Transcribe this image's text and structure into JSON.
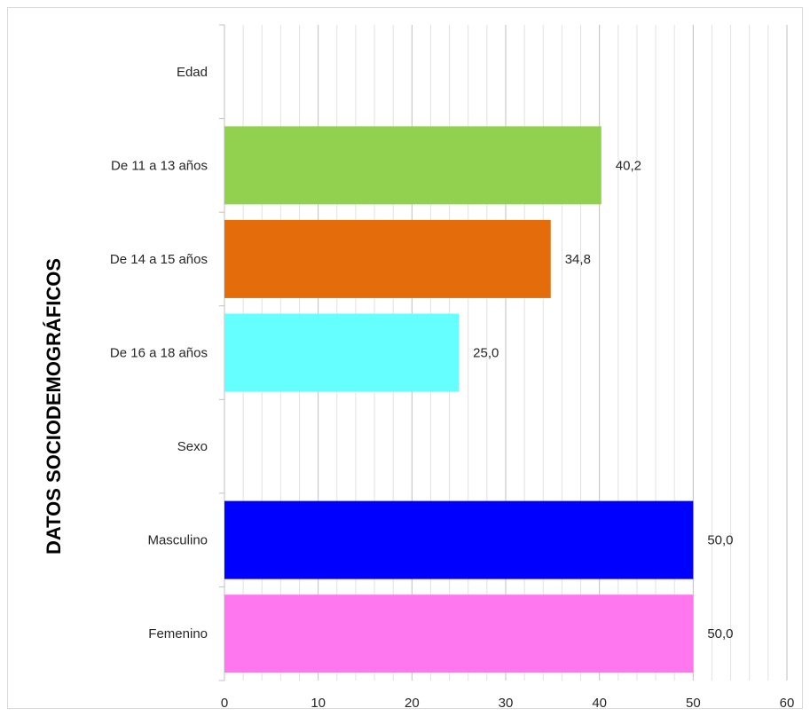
{
  "chart_data": {
    "type": "bar",
    "orientation": "horizontal",
    "title": "",
    "xlabel": "",
    "ylabel": "DATOS  SOCIODEMOGRÁFICOS",
    "xlim": [
      0,
      60
    ],
    "major_ticks": [
      0,
      10,
      20,
      30,
      40,
      50,
      60
    ],
    "minor_step": 2,
    "grid": true,
    "legend": "none",
    "categories": [
      "Edad",
      "De 11 a 13 años",
      "De 14 a 15 años",
      "De 16 a 18 años",
      "Sexo",
      "Masculino",
      "Femenino"
    ],
    "values": [
      null,
      40.2,
      34.8,
      25.0,
      null,
      50.0,
      50.0
    ],
    "value_labels": [
      "",
      "40,2",
      "34,8",
      "25,0",
      "",
      "50,0",
      "50,0"
    ],
    "colors": [
      "",
      "#92d050",
      "#e46c0a",
      "#66ffff",
      "",
      "#0000ff",
      "#ff77ee"
    ]
  }
}
